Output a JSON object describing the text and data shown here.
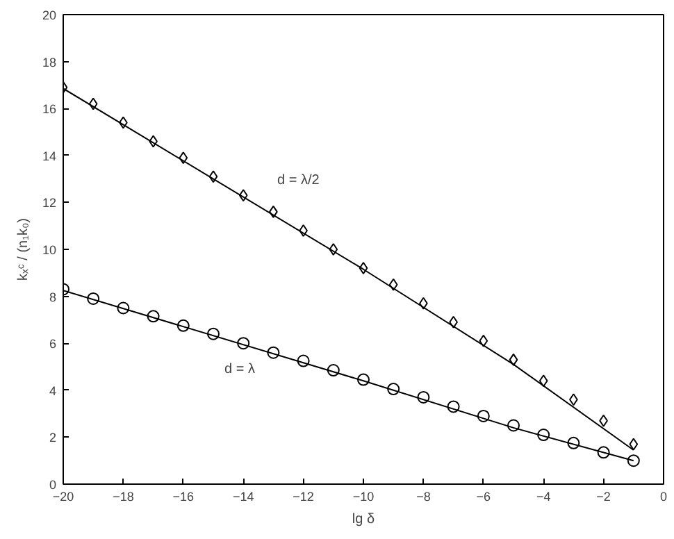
{
  "chart_data": {
    "type": "scatter",
    "xlabel": "lg δ",
    "ylabel": "kₓᶜ / (n₁k₀)",
    "xlim": [
      -20,
      0
    ],
    "ylim": [
      0,
      20
    ],
    "xticks": [
      -20,
      -18,
      -16,
      -14,
      -12,
      -10,
      -8,
      -6,
      -4,
      -2,
      0
    ],
    "yticks": [
      0,
      2,
      4,
      6,
      8,
      10,
      12,
      14,
      16,
      18,
      20
    ],
    "grid": false,
    "line_style": "solid",
    "x": [
      -20,
      -19,
      -18,
      -17,
      -16,
      -15,
      -14,
      -13,
      -12,
      -11,
      -10,
      -9,
      -8,
      -7,
      -6,
      -5,
      -4,
      -3,
      -2,
      -1
    ],
    "series": [
      {
        "marker": "diamond",
        "color": "#000000",
        "values": [
          16.9,
          16.2,
          15.4,
          14.6,
          13.9,
          13.1,
          12.3,
          11.6,
          10.8,
          10.0,
          9.2,
          8.5,
          7.7,
          6.9,
          6.1,
          5.3,
          4.4,
          3.6,
          2.7,
          1.7
        ]
      },
      {
        "marker": "circle",
        "color": "#000000",
        "values": [
          8.3,
          7.9,
          7.5,
          7.15,
          6.75,
          6.4,
          6.0,
          5.6,
          5.25,
          4.85,
          4.45,
          4.05,
          3.7,
          3.3,
          2.9,
          2.5,
          2.1,
          1.75,
          1.35,
          1.0
        ]
      },
      {
        "type": "line",
        "color": "#000000",
        "x": [
          -20,
          -10,
          -5,
          -1
        ],
        "values": [
          16.85,
          9.15,
          5.1,
          1.45
        ]
      },
      {
        "type": "line",
        "color": "#000000",
        "x": [
          -20,
          -10,
          -5,
          -1
        ],
        "values": [
          8.25,
          4.4,
          2.4,
          1.0
        ]
      }
    ],
    "annotations": [
      "d = λ/2",
      "d = λ"
    ]
  }
}
